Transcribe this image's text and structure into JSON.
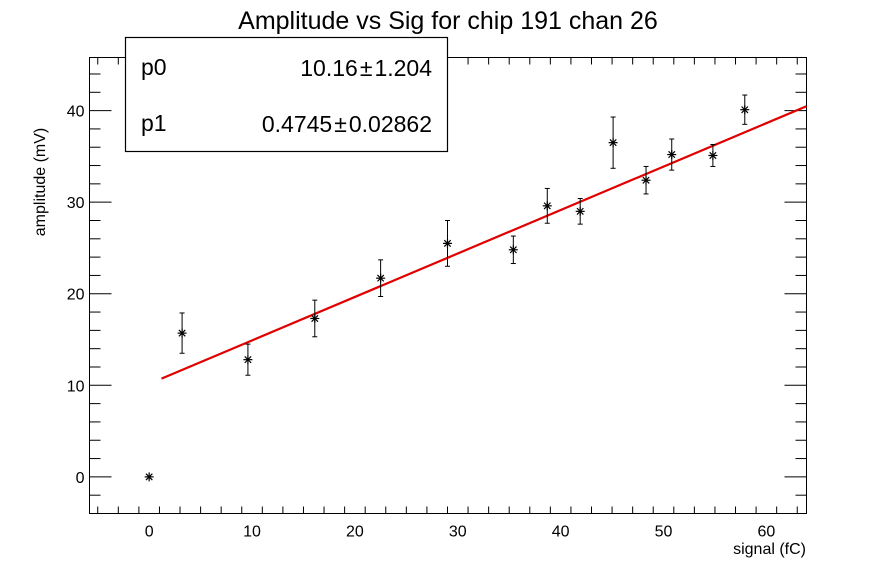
{
  "chart_data": {
    "type": "scatter",
    "title": "Amplitude vs Sig for chip 191 chan 26",
    "xlabel": "signal (fC)",
    "ylabel": "amplitude (mV)",
    "xlim": [
      -5.8,
      63.9
    ],
    "ylim": [
      -4.0,
      45.8
    ],
    "x_major_ticks": [
      0,
      10,
      20,
      30,
      40,
      50,
      60
    ],
    "y_major_ticks": [
      0,
      10,
      20,
      30,
      40
    ],
    "x_tick_labels": [
      "0",
      "10",
      "20",
      "30",
      "40",
      "50",
      "60"
    ],
    "y_tick_labels": [
      "0",
      "10",
      "20",
      "30",
      "40"
    ],
    "grid": false,
    "legend": "none",
    "points": [
      {
        "x": 0.0,
        "y": 0.0,
        "err": 0.0
      },
      {
        "x": 3.2,
        "y": 15.7,
        "err": 2.2
      },
      {
        "x": 9.6,
        "y": 12.8,
        "err": 1.7
      },
      {
        "x": 16.1,
        "y": 17.3,
        "err": 2.0
      },
      {
        "x": 22.5,
        "y": 21.7,
        "err": 2.0
      },
      {
        "x": 29.0,
        "y": 25.5,
        "err": 2.5
      },
      {
        "x": 35.4,
        "y": 24.8,
        "err": 1.5
      },
      {
        "x": 38.7,
        "y": 29.6,
        "err": 1.9
      },
      {
        "x": 41.9,
        "y": 29.0,
        "err": 1.4
      },
      {
        "x": 45.1,
        "y": 36.5,
        "err": 2.8
      },
      {
        "x": 48.3,
        "y": 32.4,
        "err": 1.5
      },
      {
        "x": 50.8,
        "y": 35.2,
        "err": 1.7
      },
      {
        "x": 54.8,
        "y": 35.1,
        "err": 1.2
      },
      {
        "x": 57.9,
        "y": 40.1,
        "err": 1.6
      }
    ],
    "fit": {
      "p0": 10.16,
      "p1": 0.4745,
      "x_range": [
        1.2,
        63.9
      ],
      "color": "#e00000"
    },
    "stats_box": {
      "rows": [
        {
          "name": "p0",
          "value": "10.16",
          "pm": "±",
          "error": "1.204"
        },
        {
          "name": "p1",
          "value": "0.4745",
          "pm": "±",
          "error": "0.02862"
        }
      ]
    },
    "marker_color": "#000000",
    "axis_color": "#000000"
  }
}
